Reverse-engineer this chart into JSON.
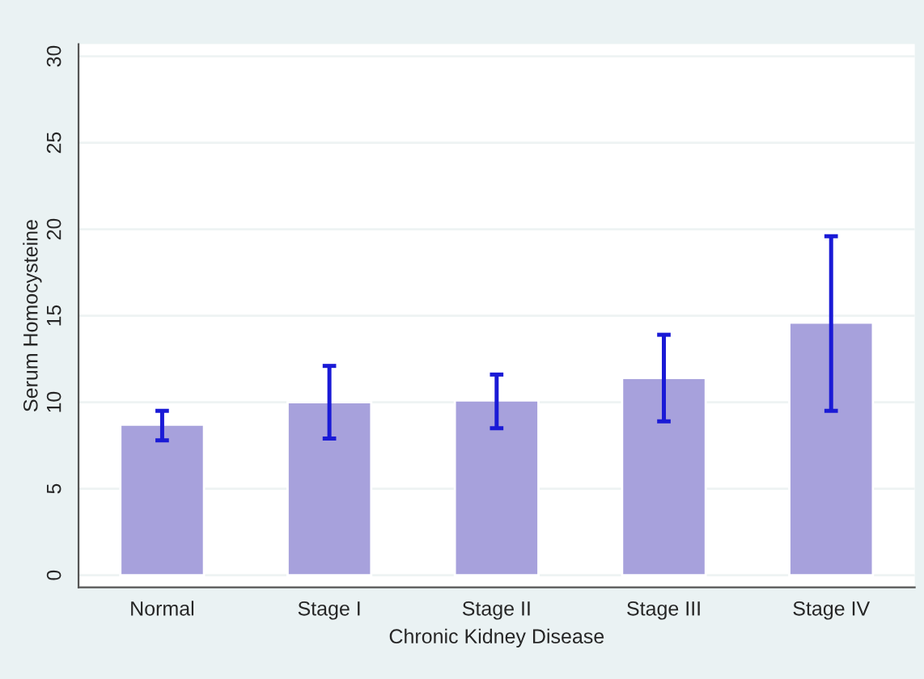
{
  "chart_data": {
    "type": "bar",
    "xlabel": "Chronic Kidney Disease",
    "ylabel": "Serum Homocysteine",
    "categories": [
      "Normal",
      "Stage I",
      "Stage II",
      "Stage III",
      "Stage IV"
    ],
    "values": [
      8.7,
      10.0,
      10.1,
      11.4,
      14.6
    ],
    "errors": [
      [
        7.8,
        9.5
      ],
      [
        7.9,
        12.1
      ],
      [
        8.5,
        11.6
      ],
      [
        8.9,
        13.9
      ],
      [
        9.5,
        19.6
      ]
    ],
    "color": "#a7a1dc",
    "ylim": [
      -0.7,
      30.7
    ],
    "yticks": [
      0,
      5,
      10,
      15,
      20,
      25,
      30
    ],
    "grid": "y"
  }
}
